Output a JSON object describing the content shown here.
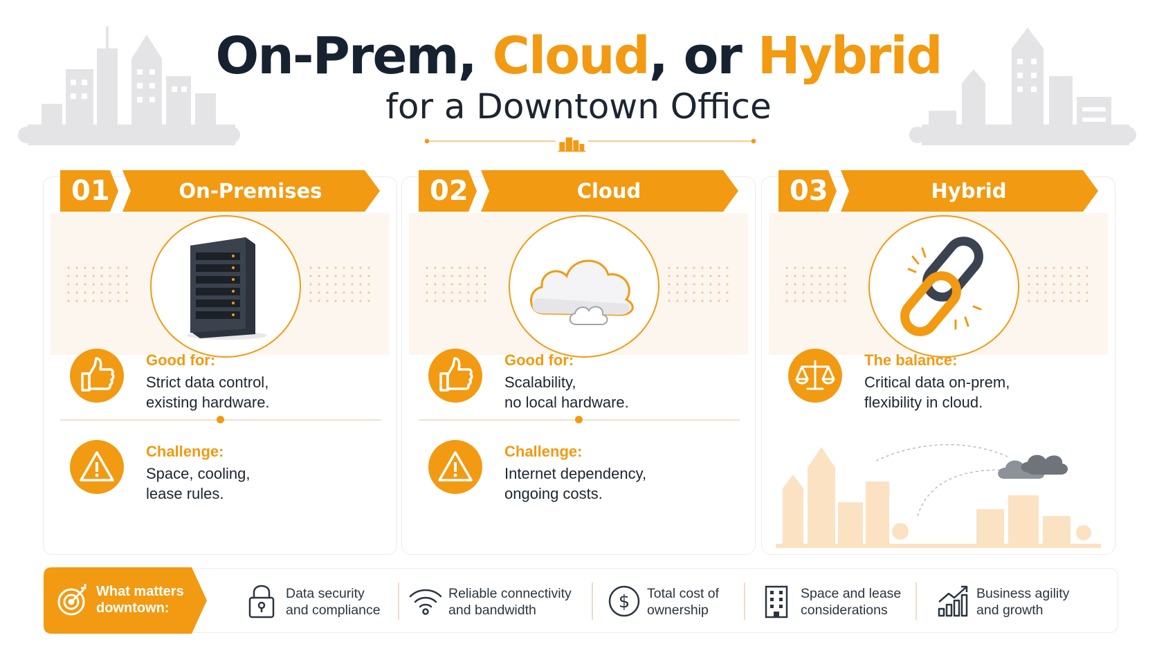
{
  "title": {
    "part1": "On-Prem, ",
    "part2": "Cloud",
    "part3": ", or ",
    "part4": "Hybrid",
    "subtitle": "for a Downtown Office"
  },
  "colors": {
    "accent": "#f29a12",
    "dark": "#16222f",
    "tint": "#fdf6ee"
  },
  "cards": [
    {
      "num": "01",
      "name": "On-Premises",
      "icon": "server-rack-icon",
      "item1": {
        "icon": "thumbs-up-icon",
        "label": "Good for:",
        "line1": "Strict data control,",
        "line2": "existing hardware."
      },
      "item2": {
        "icon": "warning-icon",
        "label": "Challenge:",
        "line1": "Space, cooling,",
        "line2": "lease rules."
      }
    },
    {
      "num": "02",
      "name": "Cloud",
      "icon": "cloud-icon",
      "item1": {
        "icon": "thumbs-up-icon",
        "label": "Good for:",
        "line1": "Scalability,",
        "line2": "no local hardware."
      },
      "item2": {
        "icon": "warning-icon",
        "label": "Challenge:",
        "line1": "Internet dependency,",
        "line2": "ongoing costs."
      }
    },
    {
      "num": "03",
      "name": "Hybrid",
      "icon": "chain-link-icon",
      "item1": {
        "icon": "balance-scale-icon",
        "label": "The balance:",
        "line1": "Critical data on-prem,",
        "line2": "flexibility in cloud."
      }
    }
  ],
  "footer": {
    "label_line1": "What matters",
    "label_line2": "downtown:",
    "items": [
      {
        "icon": "lock-icon",
        "line1": "Data security",
        "line2": "and compliance"
      },
      {
        "icon": "wifi-icon",
        "line1": "Reliable connectivity",
        "line2": "and bandwidth"
      },
      {
        "icon": "dollar-icon",
        "line1": "Total cost of",
        "line2": "ownership"
      },
      {
        "icon": "building-icon",
        "line1": "Space and lease",
        "line2": "considerations"
      },
      {
        "icon": "growth-chart-icon",
        "line1": "Business agility",
        "line2": "and growth"
      }
    ]
  }
}
